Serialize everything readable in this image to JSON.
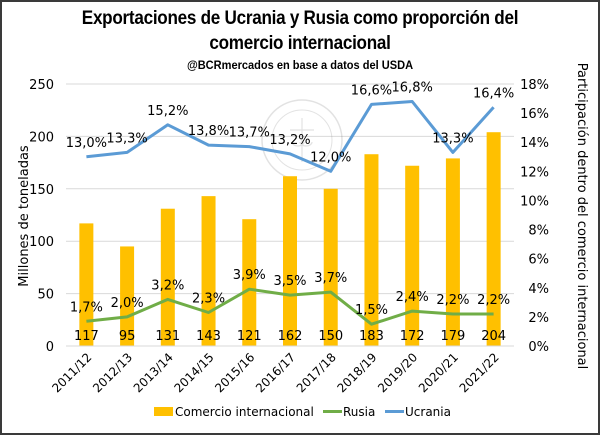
{
  "chart_data": {
    "type": "bar+line",
    "title": "Exportaciones de Ucrania y Rusia como proporción del comercio internacional",
    "title_lines": [
      "Exportaciones de Ucrania y Rusia como proporción del",
      "comercio internacional"
    ],
    "subtitle": "@BCRmercados  en base a datos del USDA",
    "categories": [
      "2011/12",
      "2012/13",
      "2013/14",
      "2014/15",
      "2015/16",
      "2016/17",
      "2017/18",
      "2018/19",
      "2019/20",
      "2020/21",
      "2021/22"
    ],
    "series": [
      {
        "name": "Comercio internacional",
        "type": "bar",
        "axis": "left",
        "color": "#FFC000",
        "values": [
          117,
          95,
          131,
          143,
          121,
          162,
          150,
          183,
          172,
          179,
          204
        ],
        "labels": [
          "117",
          "95",
          "131",
          "143",
          "121",
          "162",
          "150",
          "183",
          "172",
          "179",
          "204"
        ]
      },
      {
        "name": "Rusia",
        "type": "line",
        "axis": "right",
        "color": "#70AD47",
        "values": [
          1.7,
          2.0,
          3.2,
          2.3,
          3.9,
          3.5,
          3.7,
          1.5,
          2.4,
          2.2,
          2.2
        ],
        "labels": [
          "1,7%",
          "2,0%",
          "3,2%",
          "2,3%",
          "3,9%",
          "3,5%",
          "3,7%",
          "1,5%",
          "2,4%",
          "2,2%",
          "2,2%"
        ]
      },
      {
        "name": "Ucrania",
        "type": "line",
        "axis": "right",
        "color": "#5B9BD5",
        "values": [
          13.0,
          13.3,
          15.2,
          13.8,
          13.7,
          13.2,
          12.0,
          16.6,
          16.8,
          13.3,
          16.4
        ],
        "labels": [
          "13,0%",
          "13,3%",
          "15,2%",
          "13,8%",
          "13,7%",
          "13,2%",
          "12,0%",
          "16,6%",
          "16,8%",
          "13,3%",
          "16,4%"
        ]
      }
    ],
    "y_left": {
      "label": "Millones de toneladas",
      "range": [
        0,
        250
      ],
      "ticks": [
        "0",
        "50",
        "100",
        "150",
        "200",
        "250"
      ],
      "tick_values": [
        0,
        50,
        100,
        150,
        200,
        250
      ]
    },
    "y_right": {
      "label": "Participación dentro del comercio internacional",
      "range": [
        0,
        18
      ],
      "ticks": [
        "0%",
        "2%",
        "4%",
        "6%",
        "8%",
        "10%",
        "12%",
        "14%",
        "16%",
        "18%"
      ],
      "tick_values": [
        0,
        2,
        4,
        6,
        8,
        10,
        12,
        14,
        16,
        18
      ]
    },
    "grid": true,
    "legend": {
      "position": "bottom",
      "entries": [
        "Comercio internacional",
        "Rusia",
        "Ucrania"
      ]
    },
    "watermark": "BOLSA DE COMERCIO DE ROSARIO"
  }
}
